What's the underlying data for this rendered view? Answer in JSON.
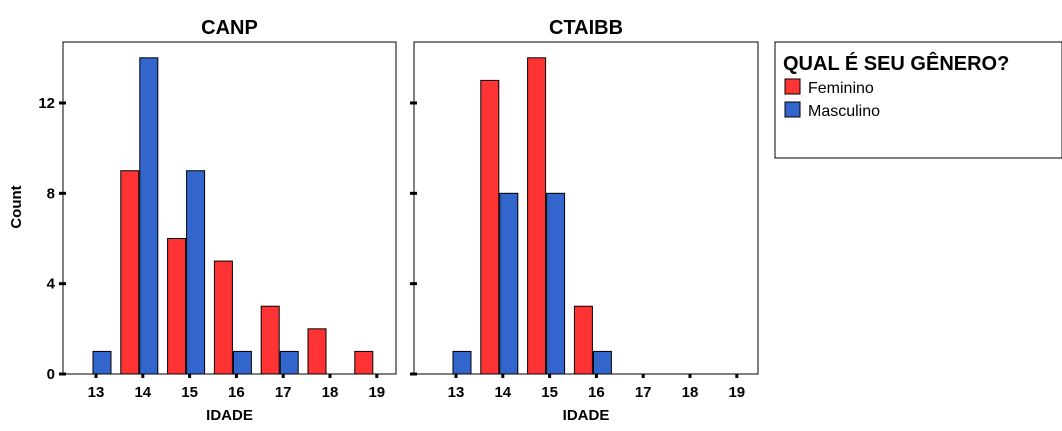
{
  "chart_data": {
    "type": "bar",
    "ylabel": "Count",
    "ylim": [
      0,
      14
    ],
    "yticks": [
      0,
      4,
      8,
      12
    ],
    "grid": false,
    "legend_placement": "top-right",
    "legend_title": "QUAL É SEU GÊNERO?",
    "colors": {
      "Feminino": "#fe3434",
      "Masculino": "#3366cc"
    },
    "panels": [
      {
        "title": "CANP",
        "xlabel": "IDADE",
        "categories": [
          "13",
          "14",
          "15",
          "16",
          "17",
          "18",
          "19"
        ],
        "series": [
          {
            "name": "Feminino",
            "values": [
              0,
              9,
              6,
              5,
              3,
              2,
              1
            ]
          },
          {
            "name": "Masculino",
            "values": [
              1,
              14,
              9,
              1,
              1,
              0,
              0
            ]
          }
        ]
      },
      {
        "title": "CTAIBB",
        "xlabel": "IDADE",
        "categories": [
          "13",
          "14",
          "15",
          "16",
          "17",
          "18",
          "19"
        ],
        "series": [
          {
            "name": "Feminino",
            "values": [
              0,
              13,
              14,
              3,
              0,
              0,
              0
            ]
          },
          {
            "name": "Masculino",
            "values": [
              1,
              8,
              8,
              1,
              0,
              0,
              0
            ]
          }
        ]
      }
    ]
  }
}
